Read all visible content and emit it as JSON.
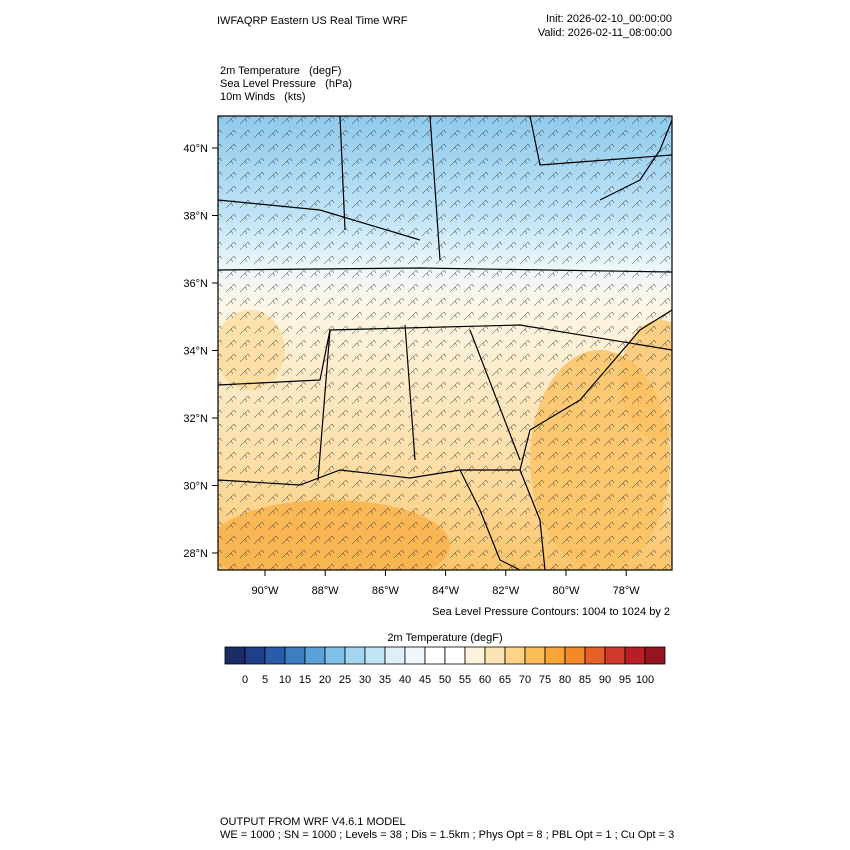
{
  "header": {
    "title": "IWFAQRP Eastern US Real Time WRF",
    "init": "Init: 2026-02-10_00:00:00",
    "valid": "Valid: 2026-02-11_08:00:00"
  },
  "fields": [
    "2m Temperature   (degF)",
    "Sea Level Pressure   (hPa)",
    "10m Winds   (kts)"
  ],
  "map": {
    "lat_labels": [
      "40°N",
      "38°N",
      "36°N",
      "34°N",
      "32°N",
      "30°N",
      "28°N"
    ],
    "lon_labels": [
      "90°W",
      "88°W",
      "86°W",
      "84°W",
      "82°W",
      "80°W",
      "78°W"
    ],
    "contour_note": "Sea Level Pressure Contours: 1004 to 1024 by 2"
  },
  "colorbar": {
    "title": "2m Temperature  (degF)",
    "labels": [
      0,
      5,
      10,
      15,
      20,
      25,
      30,
      35,
      40,
      45,
      50,
      55,
      60,
      65,
      70,
      75,
      80,
      85,
      90,
      95,
      100
    ],
    "colors": [
      "#1b2c66",
      "#1f3f8c",
      "#2b5cab",
      "#3f7dc2",
      "#5ba2d8",
      "#7fbfe8",
      "#a4d6f2",
      "#c0e4f6",
      "#dcf0f9",
      "#eff7fb",
      "#ffffff",
      "#ffffff",
      "#fdf2da",
      "#fce3b3",
      "#fbd487",
      "#fbbd58",
      "#f8a438",
      "#f28a2a",
      "#e6602a",
      "#d23a2b",
      "#b71e25",
      "#941520"
    ]
  },
  "footer": {
    "line1": "OUTPUT FROM WRF V4.6.1 MODEL",
    "line2": "WE = 1000 ; SN = 1000 ; Levels = 38 ; Dis = 1.5km ; Phys Opt = 8 ; PBL Opt = 1 ; Cu Opt = 3"
  }
}
